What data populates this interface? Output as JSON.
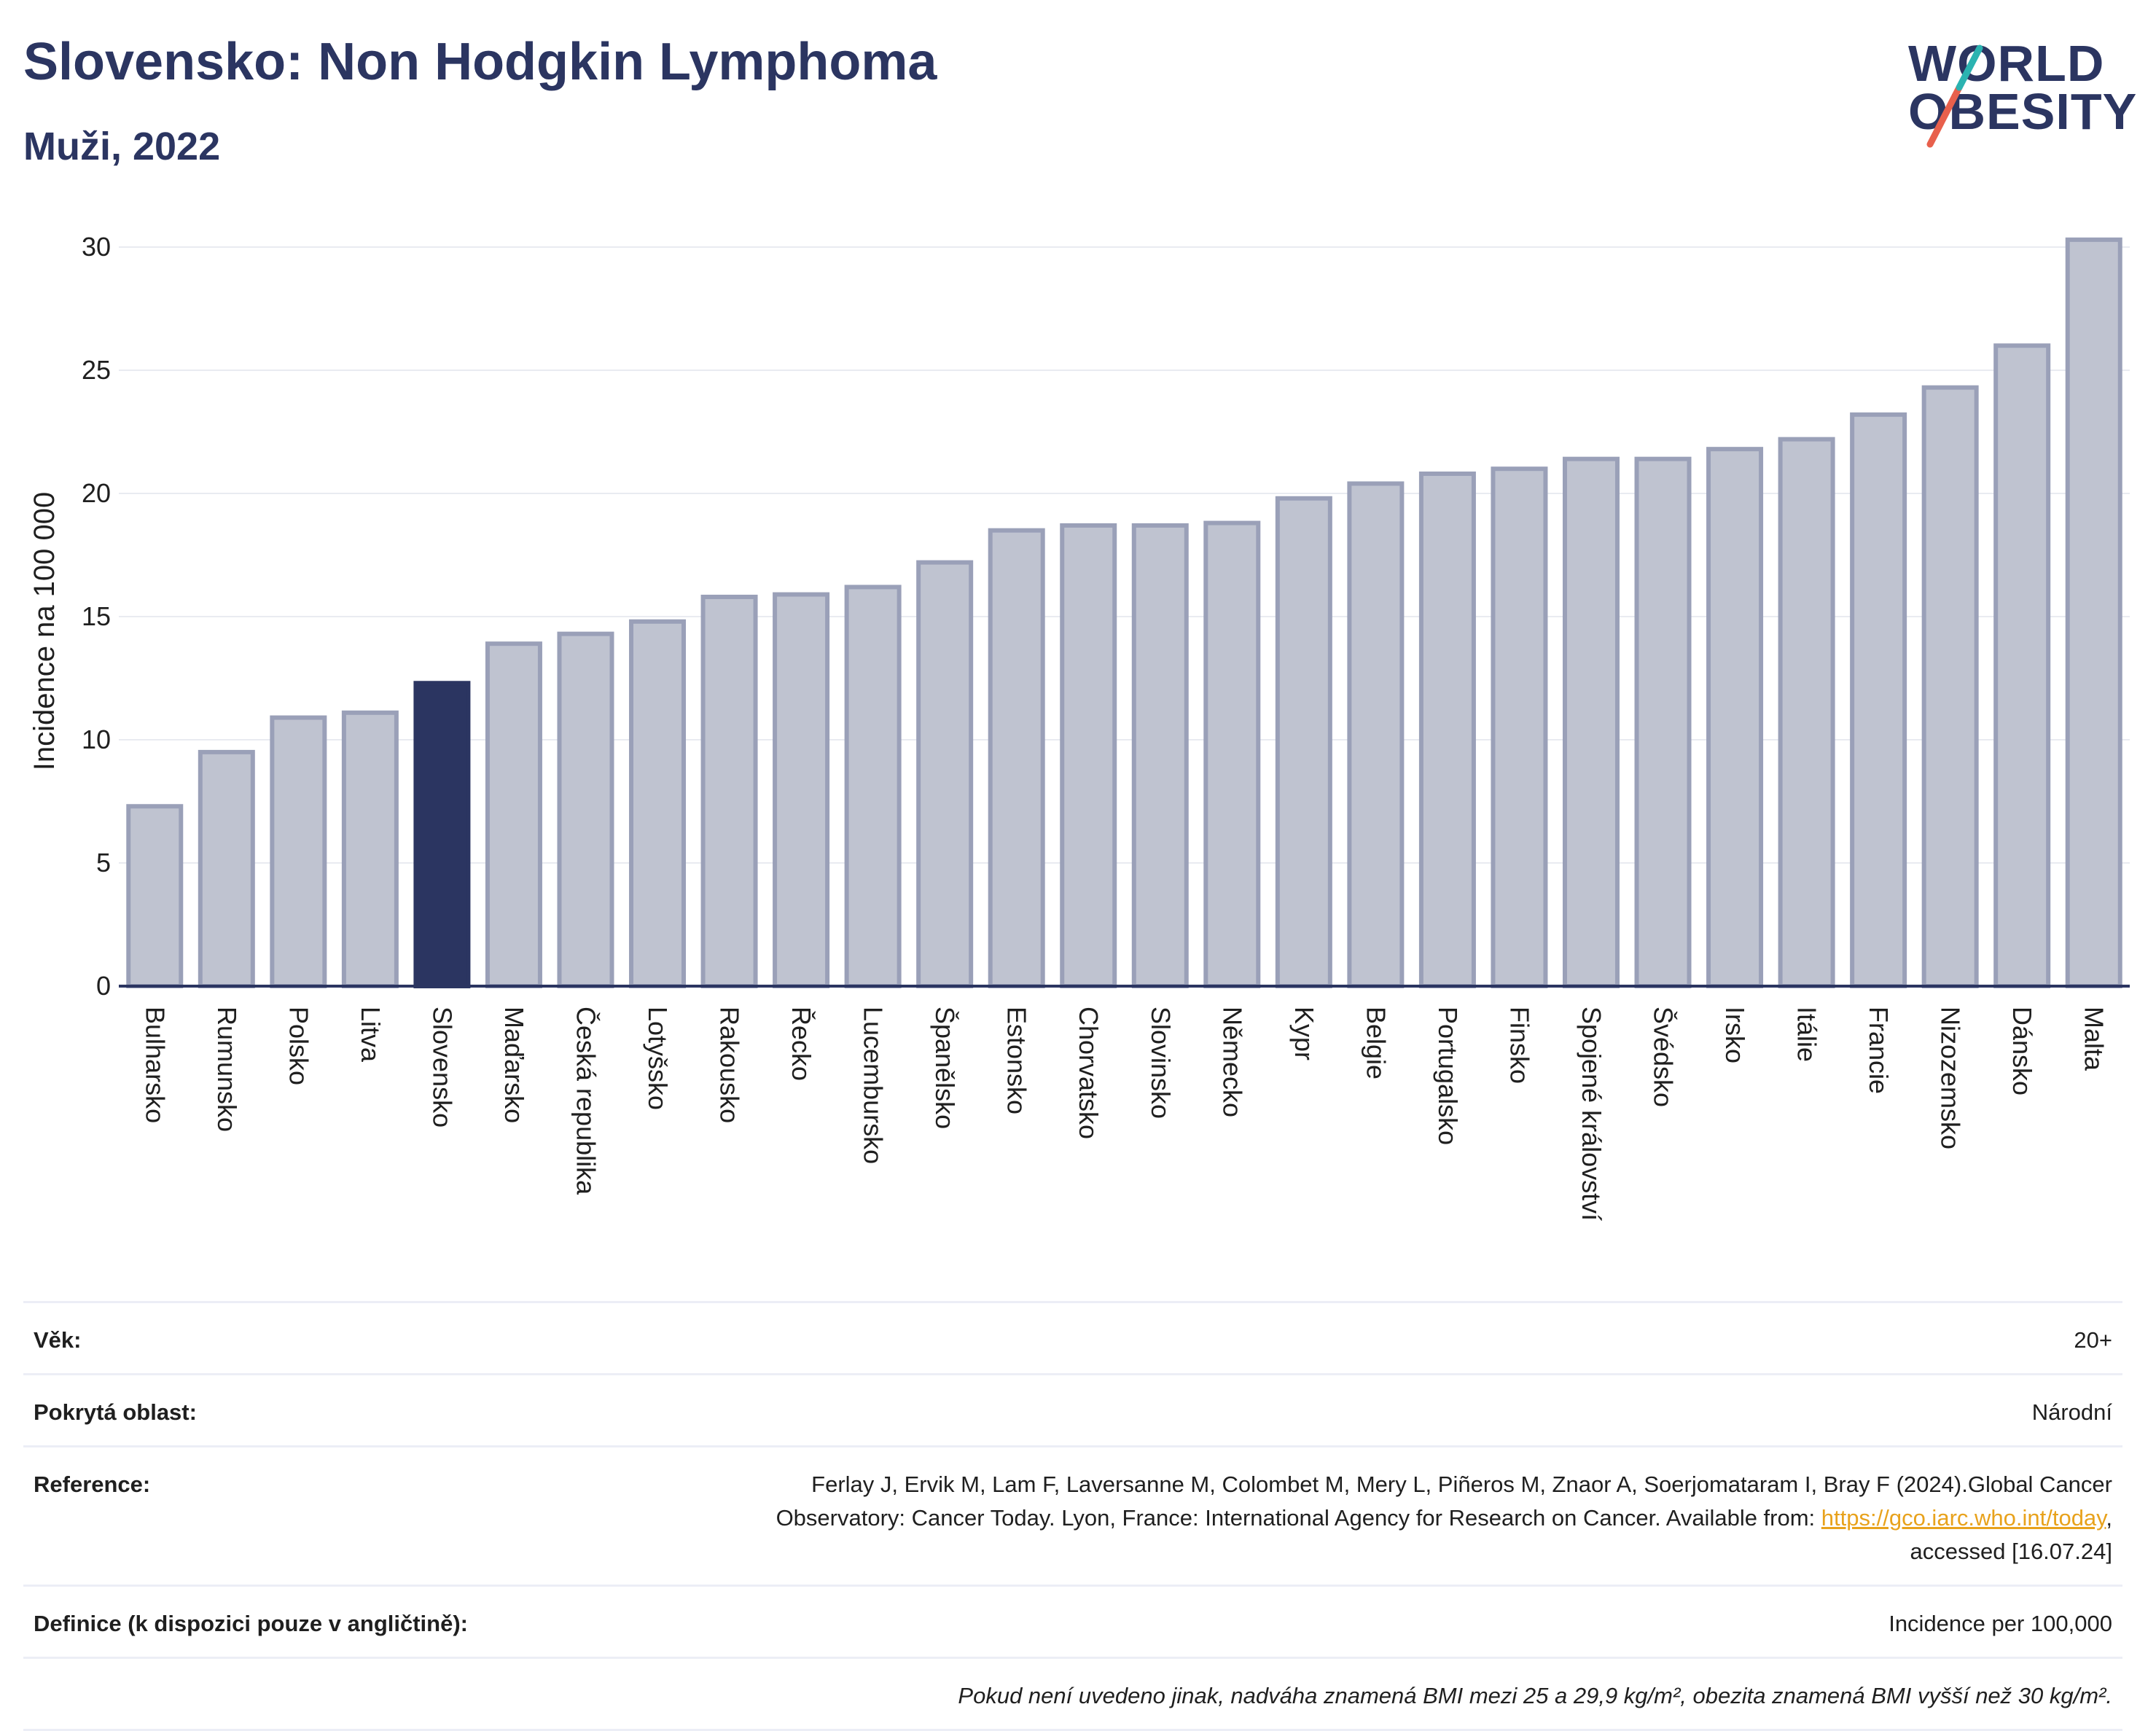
{
  "header": {
    "title": "Slovensko: Non Hodgkin Lymphoma",
    "subtitle": "Muži, 2022"
  },
  "logo": {
    "line1": "WORLD",
    "line2": "OBESITY"
  },
  "colors": {
    "highlight": "#2b3561",
    "bar_fill": "#bfc3d0",
    "bar_stroke": "#9aa0b8",
    "title": "#2b3561",
    "logo_slash_red": "#e8604c",
    "logo_slash_teal": "#2bb3b1"
  },
  "chart_data": {
    "type": "bar",
    "ylabel": "Incidence na 100 000",
    "xlabel": "",
    "ylim": [
      0,
      31
    ],
    "yticks": [
      0,
      5,
      10,
      15,
      20,
      25,
      30
    ],
    "grid": true,
    "highlight": "Slovensko",
    "categories": [
      "Bulharsko",
      "Rumunsko",
      "Polsko",
      "Litva",
      "Slovensko",
      "Maďarsko",
      "Česká republika",
      "Lotyšsko",
      "Rakousko",
      "Řecko",
      "Lucembursko",
      "Španělsko",
      "Estonsko",
      "Chorvatsko",
      "Slovinsko",
      "Německo",
      "Kypr",
      "Belgie",
      "Portugalsko",
      "Finsko",
      "Spojené království",
      "Švédsko",
      "Irsko",
      "Itálie",
      "Francie",
      "Nizozemsko",
      "Dánsko",
      "Malta"
    ],
    "values": [
      7.3,
      9.5,
      10.9,
      11.1,
      12.3,
      13.9,
      14.3,
      14.8,
      15.8,
      15.9,
      16.2,
      17.2,
      18.5,
      18.7,
      18.7,
      18.8,
      19.8,
      20.4,
      20.8,
      21.0,
      21.4,
      21.4,
      21.8,
      22.2,
      23.2,
      24.3,
      26.0,
      30.3
    ]
  },
  "meta": {
    "age": {
      "label": "Věk:",
      "value": "20+"
    },
    "area": {
      "label": "Pokrytá oblast:",
      "value": "Národní"
    },
    "reference": {
      "label": "Reference:",
      "line1": "Ferlay J, Ervik M, Lam F, Laversanne M, Colombet M, Mery L, Piñeros M, Znaor A, Soerjomataram I, Bray F (2024).Global Cancer",
      "line2_prefix": "Observatory: Cancer Today. Lyon, France: International Agency for Research on Cancer. Available from: ",
      "link": "https://gco.iarc.who.int/today",
      "line2_suffix": ",",
      "line3": "accessed [16.07.24]"
    },
    "definition": {
      "label": "Definice (k dispozici pouze v angličtině):",
      "value": "Incidence per 100,000"
    },
    "note": "Pokud není uvedeno jinak, nadváha znamená BMI mezi 25 a 29,9 kg/m², obezita znamená BMI vyšší než 30 kg/m²."
  }
}
